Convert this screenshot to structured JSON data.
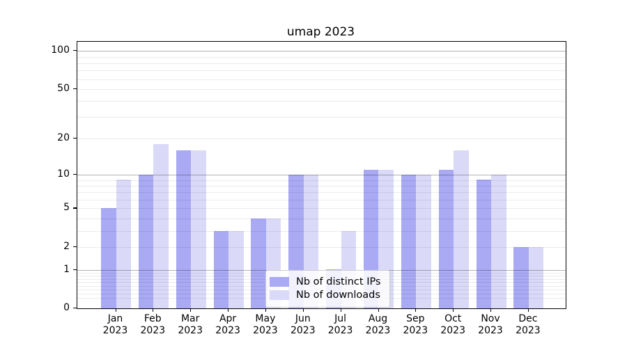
{
  "chart_data": {
    "type": "bar",
    "title": "umap 2023",
    "categories": [
      "Jan",
      "Feb",
      "Mar",
      "Apr",
      "May",
      "Jun",
      "Jul",
      "Aug",
      "Sep",
      "Oct",
      "Nov",
      "Dec"
    ],
    "category_year": "2023",
    "series": [
      {
        "name": "Nb of distinct IPs",
        "color": "#a9a9f4",
        "values": [
          5,
          10,
          16,
          3,
          4,
          10,
          1,
          11,
          10,
          11,
          9,
          2
        ]
      },
      {
        "name": "Nb of downloads",
        "color": "#dadaf8",
        "values": [
          9,
          18,
          16,
          3,
          4,
          10,
          3,
          11,
          10,
          16,
          10,
          2
        ]
      }
    ],
    "yscale": "log1p",
    "ylim": [
      0,
      118
    ],
    "y_ticks": [
      0,
      1,
      2,
      5,
      10,
      20,
      50,
      100
    ],
    "grid": {
      "on": true,
      "drawn_above_bars": true,
      "major_lines": [
        1,
        10,
        100
      ],
      "minor_lines": [
        0.2,
        0.3,
        0.4,
        0.5,
        0.6,
        0.7,
        0.8,
        0.9,
        2,
        3,
        4,
        5,
        6,
        7,
        8,
        9,
        20,
        30,
        40,
        50,
        60,
        70,
        80,
        90
      ],
      "major_color": "#b3b3b3",
      "minor_color": "#ececec"
    },
    "legend": {
      "position": "lower-center"
    },
    "xlabel": "",
    "ylabel": "",
    "frame_color": "#000000",
    "background_color": "#ffffff"
  }
}
